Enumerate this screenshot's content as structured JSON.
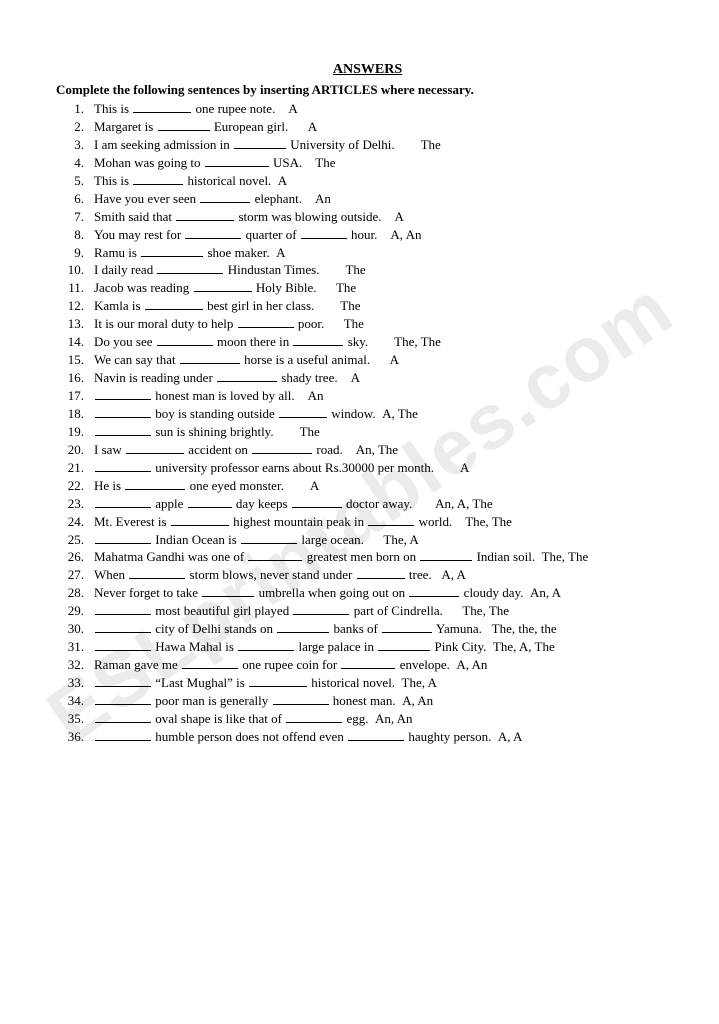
{
  "title": "ANSWERS",
  "instructions": "Complete the following sentences by inserting ARTICLES where necessary.",
  "watermark_text": "ESLprintables.com",
  "text_color": "#000000",
  "background_color": "#ffffff",
  "watermark_color": "rgba(0,0,0,0.08)",
  "font_size_pt": 10,
  "blank_widths": {
    "short": 46,
    "med": 58,
    "long": 70
  },
  "questions": [
    {
      "n": "1.",
      "segments": [
        "This is ",
        {
          "blank": 58
        },
        " one rupee note.    A"
      ]
    },
    {
      "n": "2.",
      "segments": [
        "Margaret is ",
        {
          "blank": 52
        },
        " European girl.      A"
      ]
    },
    {
      "n": "3.",
      "segments": [
        "I am seeking admission in ",
        {
          "blank": 52
        },
        " University of Delhi.        The"
      ]
    },
    {
      "n": "4.",
      "segments": [
        "Mohan was going to ",
        {
          "blank": 64
        },
        " USA.    The"
      ]
    },
    {
      "n": "5.",
      "segments": [
        "This is ",
        {
          "blank": 50
        },
        " historical novel.  A"
      ]
    },
    {
      "n": "6.",
      "segments": [
        "Have you ever seen ",
        {
          "blank": 50
        },
        " elephant.    An"
      ]
    },
    {
      "n": "7.",
      "segments": [
        "Smith said that ",
        {
          "blank": 58
        },
        " storm was blowing outside.    A"
      ]
    },
    {
      "n": "8.",
      "segments": [
        "You may rest for ",
        {
          "blank": 56
        },
        " quarter of ",
        {
          "blank": 46
        },
        " hour.    A, An"
      ]
    },
    {
      "n": "9.",
      "segments": [
        "Ramu is ",
        {
          "blank": 62
        },
        " shoe maker.  A"
      ]
    },
    {
      "n": "10.",
      "segments": [
        "I daily read ",
        {
          "blank": 66
        },
        " Hindustan Times.        The"
      ]
    },
    {
      "n": "11.",
      "segments": [
        "Jacob was reading ",
        {
          "blank": 58
        },
        " Holy Bible.      The"
      ]
    },
    {
      "n": "12.",
      "segments": [
        "Kamla is ",
        {
          "blank": 58
        },
        " best girl in her class.        The"
      ]
    },
    {
      "n": "13.",
      "segments": [
        "It is our moral duty to help ",
        {
          "blank": 56
        },
        " poor.      The"
      ]
    },
    {
      "n": "14.",
      "segments": [
        "Do you see ",
        {
          "blank": 56
        },
        " moon there in ",
        {
          "blank": 50
        },
        " sky.        The, The"
      ]
    },
    {
      "n": "15.",
      "segments": [
        "We can say that ",
        {
          "blank": 60
        },
        " horse is a useful animal.      A"
      ]
    },
    {
      "n": "16.",
      "segments": [
        "Navin is reading under ",
        {
          "blank": 60
        },
        " shady tree.    A"
      ]
    },
    {
      "n": "17.",
      "segments": [
        {
          "blank": 56
        },
        " honest man is loved by all.    An"
      ]
    },
    {
      "n": "18.",
      "segments": [
        {
          "blank": 56
        },
        " boy is standing outside ",
        {
          "blank": 48
        },
        " window.  A, The"
      ]
    },
    {
      "n": "19.",
      "segments": [
        {
          "blank": 56
        },
        " sun is shining brightly.        The"
      ]
    },
    {
      "n": "20.",
      "segments": [
        "I saw ",
        {
          "blank": 58
        },
        " accident on ",
        {
          "blank": 60
        },
        " road.    An, The"
      ]
    },
    {
      "n": "21.",
      "segments": [
        {
          "blank": 56
        },
        " university professor earns about Rs.30000 per month.        A"
      ]
    },
    {
      "n": "22.",
      "segments": [
        "He is ",
        {
          "blank": 60
        },
        " one eyed monster.        A"
      ]
    },
    {
      "n": "23.",
      "segments": [
        {
          "blank": 56
        },
        " apple ",
        {
          "blank": 44
        },
        " day keeps ",
        {
          "blank": 50
        },
        " doctor away.       An, A, The"
      ]
    },
    {
      "n": "24.",
      "segments": [
        "Mt. Everest is ",
        {
          "blank": 58
        },
        " highest mountain peak in ",
        {
          "blank": 46
        },
        " world.    The, The"
      ]
    },
    {
      "n": "25.",
      "segments": [
        {
          "blank": 56
        },
        " Indian Ocean is ",
        {
          "blank": 56
        },
        " large ocean.      The, A"
      ]
    },
    {
      "n": "26.",
      "segments": [
        "Mahatma Gandhi was one of ",
        {
          "blank": 54
        },
        " greatest men born on ",
        {
          "blank": 52
        },
        " Indian soil.  The, The"
      ]
    },
    {
      "n": "27.",
      "segments": [
        "When ",
        {
          "blank": 56
        },
        " storm blows, never stand under ",
        {
          "blank": 48
        },
        " tree.   A, A"
      ]
    },
    {
      "n": "28.",
      "segments": [
        "Never forget to take ",
        {
          "blank": 52
        },
        " umbrella when going out on ",
        {
          "blank": 50
        },
        " cloudy day.  An, A"
      ]
    },
    {
      "n": "29.",
      "segments": [
        {
          "blank": 56
        },
        " most beautiful girl played ",
        {
          "blank": 56
        },
        " part of Cindrella.      The, The"
      ]
    },
    {
      "n": "30.",
      "segments": [
        {
          "blank": 56
        },
        " city of Delhi stands on ",
        {
          "blank": 52
        },
        " banks of ",
        {
          "blank": 50
        },
        " Yamuna.   The, the, the"
      ]
    },
    {
      "n": "31.",
      "segments": [
        {
          "blank": 56
        },
        " Hawa Mahal is ",
        {
          "blank": 56
        },
        " large palace in ",
        {
          "blank": 52
        },
        " Pink City.  The, A, The"
      ]
    },
    {
      "n": "32.",
      "segments": [
        "Raman gave me ",
        {
          "blank": 56
        },
        " one rupee coin for ",
        {
          "blank": 54
        },
        " envelope.  A, An"
      ]
    },
    {
      "n": "33.",
      "segments": [
        {
          "blank": 56
        },
        " “Last Mughal” is ",
        {
          "blank": 58
        },
        " historical novel.  The, A"
      ]
    },
    {
      "n": "34.",
      "segments": [
        {
          "blank": 56
        },
        " poor man is generally ",
        {
          "blank": 56
        },
        " honest man.  A, An"
      ]
    },
    {
      "n": "35.",
      "segments": [
        {
          "blank": 56
        },
        " oval shape is like that of ",
        {
          "blank": 56
        },
        " egg.  An, An"
      ]
    },
    {
      "n": "36.",
      "segments": [
        {
          "blank": 56
        },
        " humble person does not offend even ",
        {
          "blank": 56
        },
        " haughty person.  A, A"
      ]
    }
  ]
}
